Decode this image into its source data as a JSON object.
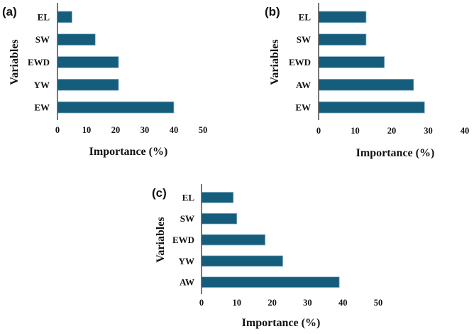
{
  "colors": {
    "bar": "#165d7c",
    "axis": "#555555",
    "text": "#111111"
  },
  "chart_data": [
    {
      "type": "bar",
      "orientation": "horizontal",
      "panel": "(a)",
      "categories": [
        "EL",
        "SW",
        "EWD",
        "YW",
        "EW"
      ],
      "values": [
        5,
        13,
        21,
        21,
        40
      ],
      "xlabel": "Importance (%)",
      "ylabel": "Variables",
      "xlim": [
        0,
        50
      ],
      "xticks": [
        0,
        10,
        20,
        30,
        40,
        50
      ],
      "grid": false
    },
    {
      "type": "bar",
      "orientation": "horizontal",
      "panel": "(b)",
      "categories": [
        "EL",
        "SW",
        "EWD",
        "AW",
        "EW"
      ],
      "values": [
        13,
        13,
        18,
        26,
        29
      ],
      "xlabel": "Importance (%)",
      "ylabel": "Variables",
      "xlim": [
        0,
        40
      ],
      "xticks": [
        0,
        10,
        20,
        30,
        40
      ],
      "grid": false
    },
    {
      "type": "bar",
      "orientation": "horizontal",
      "panel": "(c)",
      "categories": [
        "EL",
        "SW",
        "EWD",
        "YW",
        "AW"
      ],
      "values": [
        9,
        10,
        18,
        23,
        39
      ],
      "xlabel": "Importance (%)",
      "ylabel": "Variables",
      "xlim": [
        0,
        50
      ],
      "xticks": [
        0,
        10,
        20,
        30,
        40,
        50
      ],
      "grid": false
    }
  ]
}
